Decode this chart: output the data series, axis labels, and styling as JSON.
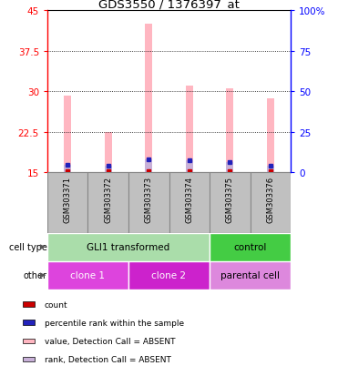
{
  "title": "GDS3550 / 1376397_at",
  "samples": [
    "GSM303371",
    "GSM303372",
    "GSM303373",
    "GSM303374",
    "GSM303375",
    "GSM303376"
  ],
  "value_bars": [
    29.3,
    22.5,
    42.5,
    31.0,
    30.5,
    28.8
  ],
  "rank_bars": [
    16.5,
    16.2,
    17.5,
    17.3,
    17.0,
    16.3
  ],
  "ylim_left": [
    15,
    45
  ],
  "yticks_left": [
    15,
    22.5,
    30,
    37.5,
    45
  ],
  "ytick_labels_left": [
    "15",
    "22.5",
    "30",
    "37.5",
    "45"
  ],
  "yticks_right": [
    0,
    25,
    50,
    75,
    100
  ],
  "ytick_labels_right": [
    "0",
    "25",
    "50",
    "75",
    "100%"
  ],
  "ylim_right": [
    0,
    100
  ],
  "bar_color_value": "#ffb6c1",
  "bar_color_rank": "#c8b0d8",
  "count_color": "#cc0000",
  "rank_dot_color": "#2222bb",
  "bar_width": 0.18,
  "cell_type_groups": [
    {
      "label": "GLI1 transformed",
      "start": 0,
      "end": 4,
      "color": "#aaddaa"
    },
    {
      "label": "control",
      "start": 4,
      "end": 6,
      "color": "#44cc44"
    }
  ],
  "other_groups": [
    {
      "label": "clone 1",
      "start": 0,
      "end": 2,
      "color": "#dd44dd"
    },
    {
      "label": "clone 2",
      "start": 2,
      "end": 4,
      "color": "#cc22cc"
    },
    {
      "label": "parental cell",
      "start": 4,
      "end": 6,
      "color": "#dd88dd"
    }
  ],
  "legend_items": [
    {
      "label": "count",
      "color": "#cc0000"
    },
    {
      "label": "percentile rank within the sample",
      "color": "#2222bb"
    },
    {
      "label": "value, Detection Call = ABSENT",
      "color": "#ffb6c1"
    },
    {
      "label": "rank, Detection Call = ABSENT",
      "color": "#c8b0d8"
    }
  ],
  "cell_type_label": "cell type",
  "other_label": "other",
  "sample_box_color": "#c0c0c0",
  "sample_box_edge": "#888888"
}
